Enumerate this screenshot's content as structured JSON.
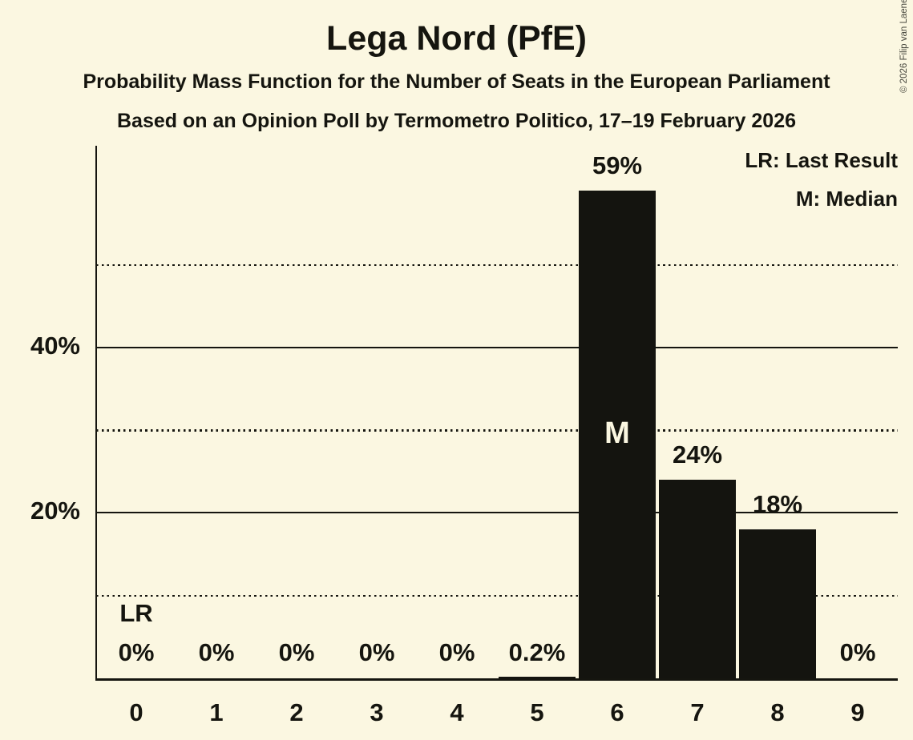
{
  "header": {
    "title": "Lega Nord (PfE)",
    "subtitle1": "Probability Mass Function for the Number of Seats in the European Parliament",
    "subtitle2": "Based on an Opinion Poll by Termometro Politico, 17–19 February 2026"
  },
  "copyright": "© 2026 Filip van Laenen",
  "legend": {
    "lr": "LR: Last Result",
    "m": "M: Median"
  },
  "colors": {
    "background": "#FBF7E1",
    "ink": "#15150F",
    "bar": "#14140F",
    "bar_inner_label": "#FBF7E1",
    "copyright_text": "#45453C"
  },
  "chart_data": {
    "type": "bar",
    "title": "Lega Nord (PfE)",
    "categories": [
      "0",
      "1",
      "2",
      "3",
      "4",
      "5",
      "6",
      "7",
      "8",
      "9"
    ],
    "values": [
      0,
      0,
      0,
      0,
      0,
      0.2,
      59,
      24,
      18,
      0
    ],
    "value_labels": [
      "0%",
      "0%",
      "0%",
      "0%",
      "0%",
      "0.2%",
      "59%",
      "24%",
      "18%",
      "0%"
    ],
    "xlabel": "",
    "ylabel": "",
    "ylim": [
      0,
      62
    ],
    "y_ticks": [
      {
        "pct": 40,
        "label": "40%"
      },
      {
        "pct": 20,
        "label": "20%"
      }
    ],
    "gridlines_solid_pct": [
      20,
      40
    ],
    "gridlines_dotted_pct": [
      10,
      30,
      50
    ],
    "median_seat": 6,
    "median_marker": "M",
    "last_result_seat": 0,
    "last_result_marker": "LR",
    "legend_position": "top-right",
    "grid": "horizontal-only"
  }
}
